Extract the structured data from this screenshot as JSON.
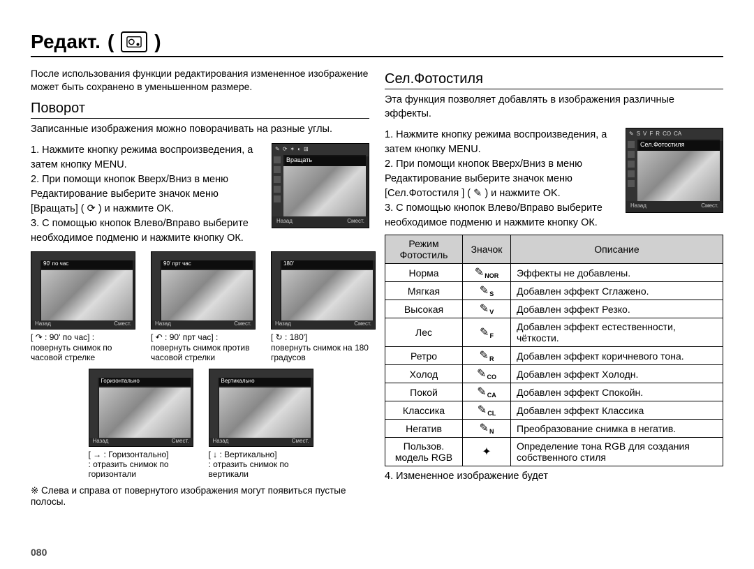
{
  "pageNumber": "080",
  "title": "Редакт.",
  "parenOpen": "( ",
  "parenClose": " )",
  "intro": "После использования функции редактирования измененное изображение может быть сохранено в уменьшенном размере.",
  "rotate": {
    "title": "Поворот",
    "desc": "Записанные изображения можно поворачивать на разные углы.",
    "step1": "1. Нажмите кнопку режима воспроизведения, а затем кнопку MENU.",
    "step2a": "2. При помощи кнопок Вверх/Вниз в меню Редактирование выберите значок меню [Вращать] ( ",
    "step2b": " ) и нажмите OK.",
    "step3": "3. С помощью кнопок Влево/Вправо выберите необходимое подменю и нажмите кнопку ОК.",
    "thumbBack": "Назад",
    "thumbMove": "Смест.",
    "optRotShort": "Вращать",
    "opts": [
      {
        "band": "90' по час",
        "capIcon": "↷",
        "capLine1": "[ ↷ : 90' по час] :",
        "capLine2": "повернуть снимок по часовой стрелке"
      },
      {
        "band": "90' прт час",
        "capIcon": "↶",
        "capLine1": "[ ↶ : 90' прт час] :",
        "capLine2": "повернуть снимок против часовой стрелки"
      },
      {
        "band": "180'",
        "capIcon": "↻",
        "capLine1": "[ ↻ : 180']",
        "capLine2": "повернуть снимок на 180 градусов"
      },
      {
        "band": "Горизонтально",
        "capIcon": "→",
        "capLine1": "[ → : Горизонтально]",
        "capLine2": ": отразить снимок по горизонтали"
      },
      {
        "band": "Вертикально",
        "capIcon": "↓",
        "capLine1": "[ ↓ : Вертикально]",
        "capLine2": ": отразить снимок по вертикали"
      }
    ],
    "note": "※ Слева и справа от повернутого изображения могут появиться пустые полосы."
  },
  "photostyle": {
    "title": "Сел.Фотостиля",
    "desc": "Эта функция позволяет добавлять в изображения различные эффекты.",
    "step1": "1. Нажмите кнопку режима воспроизведения, а затем кнопку MENU.",
    "step2a": "2. При помощи кнопок Вверх/Вниз в меню Редактирование выберите значок меню [Сел.Фотостиля ] ( ",
    "step2b": " ) и нажмите OK.",
    "step3": "3. С помощью кнопок Влево/Вправо выберите необходимое подменю и нажмите кнопку ОК.",
    "step4": "4. Измененное изображение будет",
    "thumbBand": "Сел.Фотостиля",
    "thumbBack": "Назад",
    "thumbMove": "Смест.",
    "tableHeaders": {
      "mode": "Режим Фотостиль",
      "icon": "Значок",
      "desc": "Описание"
    },
    "rows": [
      {
        "mode": "Норма",
        "sub": "NOR",
        "desc": "Эффекты не добавлены."
      },
      {
        "mode": "Мягкая",
        "sub": "S",
        "desc": "Добавлен эффект Сглажено."
      },
      {
        "mode": "Высокая",
        "sub": "V",
        "desc": "Добавлен эффект Резко."
      },
      {
        "mode": "Лес",
        "sub": "F",
        "desc": "Добавлен эффект естественности, чёткости."
      },
      {
        "mode": "Ретро",
        "sub": "R",
        "desc": "Добавлен эффект коричневого тона."
      },
      {
        "mode": "Холод",
        "sub": "CO",
        "desc": "Добавлен эффект Холодн."
      },
      {
        "mode": "Покой",
        "sub": "CA",
        "desc": "Добавлен эффект Спокойн."
      },
      {
        "mode": "Классика",
        "sub": "CL",
        "desc": "Добавлен эффект Классика"
      },
      {
        "mode": "Негатив",
        "sub": "N",
        "desc": "Преобразование снимка в негатив."
      },
      {
        "mode": "Пользов. модель RGB",
        "sub": "",
        "desc": "Определение тона RGB для создания собственного стиля"
      }
    ]
  }
}
